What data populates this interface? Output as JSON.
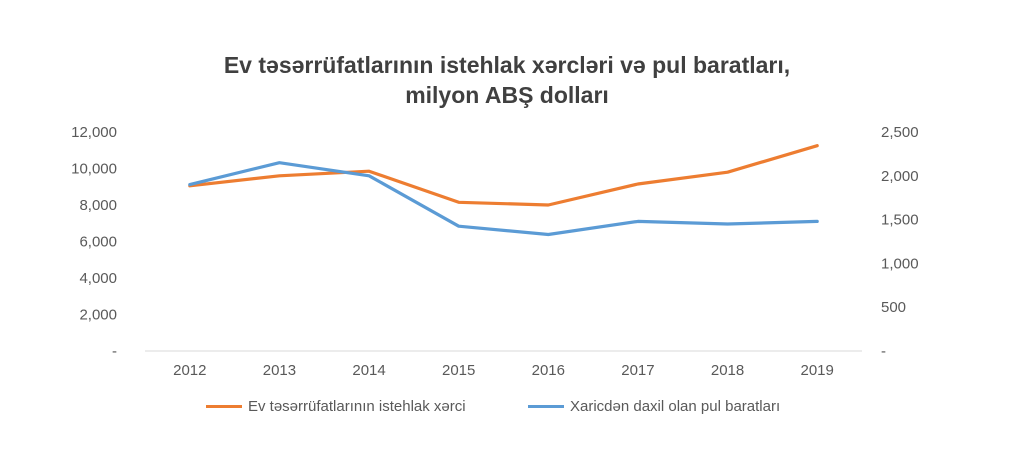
{
  "chart_data": {
    "type": "line",
    "title": [
      "Ev təsərrüfatlarının istehlak xərcləri və pul baratları,",
      "milyon ABŞ dolları"
    ],
    "categories": [
      "2012",
      "2013",
      "2014",
      "2015",
      "2016",
      "2017",
      "2018",
      "2019"
    ],
    "series": [
      {
        "name": "Ev təsərrüfatlarının istehlak xərci",
        "axis": "left",
        "color": "#ED7D31",
        "values": [
          9050,
          9600,
          9850,
          8150,
          8000,
          9150,
          9800,
          11250
        ]
      },
      {
        "name": "Xaricdən daxil olan pul baratları",
        "axis": "right",
        "color": "#5B9BD5",
        "values": [
          1900,
          2150,
          2000,
          1425,
          1330,
          1480,
          1450,
          1480
        ]
      }
    ],
    "y_left": {
      "ylim": [
        0,
        12000
      ],
      "ticks": [
        "-",
        "2,000",
        "4,000",
        "6,000",
        "8,000",
        "10,000",
        "12,000"
      ]
    },
    "y_right": {
      "ylim": [
        0,
        2500
      ],
      "ticks": [
        "-",
        "500",
        "1,000",
        "1,500",
        "2,000",
        "2,500"
      ]
    },
    "grid": false,
    "legend_position": "bottom"
  }
}
